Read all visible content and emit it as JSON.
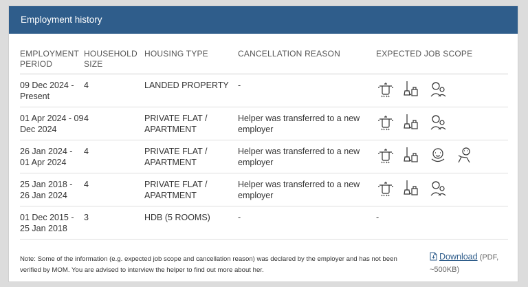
{
  "card": {
    "title": "Employment history"
  },
  "table": {
    "headers": [
      "EMPLOYMENT PERIOD",
      "HOUSEHOLD SIZE",
      "HOUSING TYPE",
      "CANCELLATION REASON",
      "EXPECTED JOB SCOPE"
    ],
    "rows": [
      {
        "period": "09 Dec 2024 - Present",
        "household": "4",
        "housing": "LANDED PROPERTY",
        "reason": "-",
        "scope": [
          "cooking-pot-icon",
          "cleaning-icon",
          "elderly-care-icon"
        ]
      },
      {
        "period": "01 Apr 2024 - 09 Dec 2024",
        "household": "4",
        "housing": "PRIVATE FLAT / APARTMENT",
        "reason": "Helper was transferred to a new employer",
        "scope": [
          "cooking-pot-icon",
          "cleaning-icon",
          "elderly-care-icon"
        ]
      },
      {
        "period": "26 Jan 2024 - 01 Apr 2024",
        "household": "4",
        "housing": "PRIVATE FLAT / APARTMENT",
        "reason": "Helper was transferred to a new employer",
        "scope": [
          "cooking-pot-icon",
          "cleaning-icon",
          "infant-care-icon",
          "child-care-icon"
        ]
      },
      {
        "period": "25 Jan 2018 - 26 Jan 2024",
        "household": "4",
        "housing": "PRIVATE FLAT / APARTMENT",
        "reason": "Helper was transferred to a new employer",
        "scope": [
          "cooking-pot-icon",
          "cleaning-icon",
          "elderly-care-icon"
        ]
      },
      {
        "period": "01 Dec 2015 - 25 Jan 2018",
        "household": "3",
        "housing": "HDB (5 ROOMS)",
        "reason": "-",
        "scope_text": "-"
      }
    ]
  },
  "note": "Note: Some of the information (e.g. expected job scope and cancellation reason) was declared by the employer and has not been verified by MOM. You are advised to interview the helper to find out more about her.",
  "download": {
    "label": "Download",
    "meta": "(PDF, ~500KB)"
  },
  "colors": {
    "header_bg": "#2f5d8b",
    "link": "#2f5d8b"
  }
}
